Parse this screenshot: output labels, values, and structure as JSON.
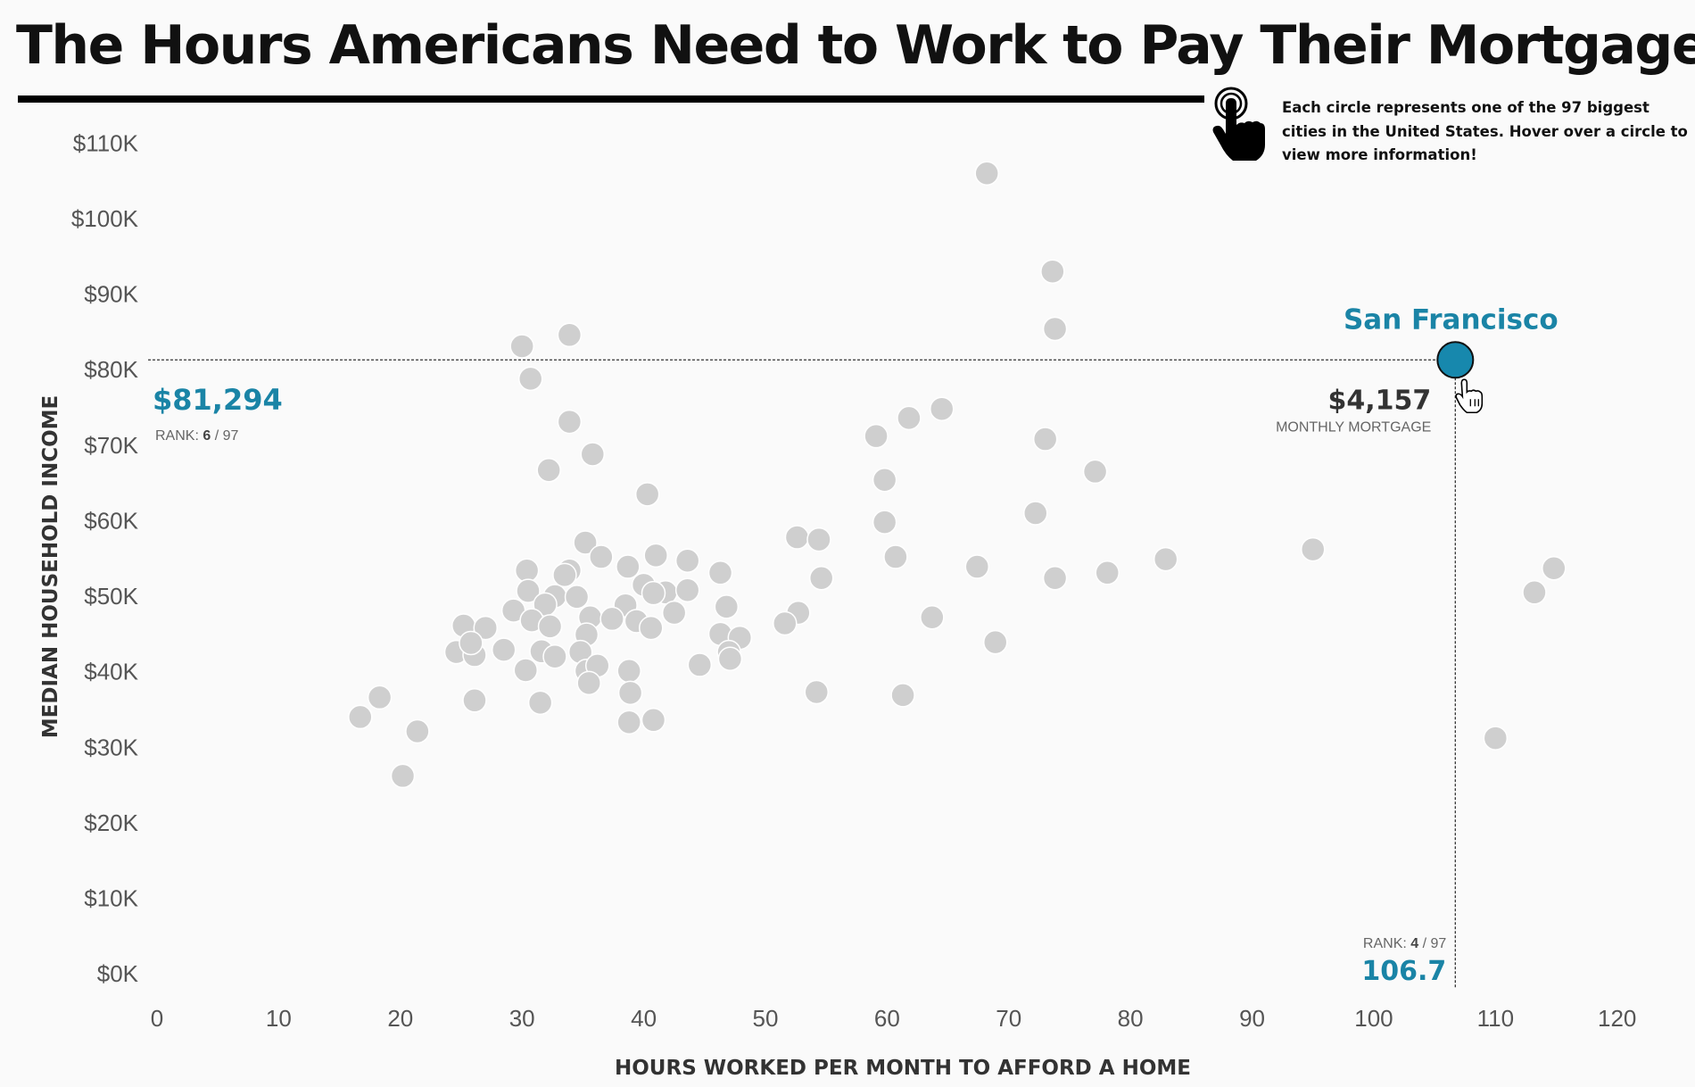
{
  "title": "The Hours Americans Need to Work to Pay Their Mortgage",
  "instructions": "Each circle represents one of the 97 biggest cities in the United States. Hover over a circle to view more information!",
  "icons": {
    "pointer": "pointing-hand-icon",
    "cursor": "hand-cursor-icon"
  },
  "colors": {
    "highlight": "#1a84a6",
    "dots": "#cfcfcf",
    "title_rule": "#000000"
  },
  "chart_data": {
    "type": "scatter",
    "xlabel": "HOURS WORKED PER MONTH TO AFFORD A HOME",
    "ylabel": "MEDIAN HOUSEHOLD INCOME",
    "xlim": [
      0,
      122
    ],
    "ylim": [
      -2000,
      113000
    ],
    "xticks": [
      "0",
      "10",
      "20",
      "30",
      "40",
      "50",
      "60",
      "70",
      "80",
      "90",
      "100",
      "110",
      "120"
    ],
    "yticks": [
      "$0K",
      "$10K",
      "$20K",
      "$30K",
      "$40K",
      "$50K",
      "$60K",
      "$70K",
      "$80K",
      "$90K",
      "$100K",
      "$110K"
    ],
    "grid": false,
    "points": [
      [
        68.2,
        106000
      ],
      [
        73.6,
        93000
      ],
      [
        73.8,
        85400
      ],
      [
        33.9,
        84600
      ],
      [
        30.0,
        83100
      ],
      [
        30.7,
        78800
      ],
      [
        33.9,
        73100
      ],
      [
        35.8,
        68800
      ],
      [
        32.2,
        66700
      ],
      [
        40.3,
        63500
      ],
      [
        59.1,
        71200
      ],
      [
        61.8,
        73600
      ],
      [
        64.5,
        74800
      ],
      [
        73.0,
        70800
      ],
      [
        77.1,
        66500
      ],
      [
        59.8,
        65400
      ],
      [
        59.8,
        59800
      ],
      [
        72.2,
        61000
      ],
      [
        60.7,
        55200
      ],
      [
        52.6,
        57800
      ],
      [
        54.4,
        57500
      ],
      [
        35.2,
        57100
      ],
      [
        36.5,
        55200
      ],
      [
        41.0,
        55400
      ],
      [
        43.6,
        54700
      ],
      [
        38.7,
        53900
      ],
      [
        30.4,
        53400
      ],
      [
        33.9,
        53400
      ],
      [
        33.5,
        52800
      ],
      [
        46.3,
        53100
      ],
      [
        54.6,
        52400
      ],
      [
        67.4,
        53900
      ],
      [
        73.8,
        52400
      ],
      [
        78.1,
        53100
      ],
      [
        82.9,
        54900
      ],
      [
        95.0,
        56200
      ],
      [
        114.8,
        53700
      ],
      [
        113.2,
        50500
      ],
      [
        110.0,
        31200
      ],
      [
        40.0,
        51500
      ],
      [
        41.8,
        50500
      ],
      [
        30.5,
        50700
      ],
      [
        32.7,
        50000
      ],
      [
        34.5,
        49900
      ],
      [
        40.8,
        50400
      ],
      [
        43.6,
        50800
      ],
      [
        31.9,
        48900
      ],
      [
        29.3,
        48100
      ],
      [
        35.6,
        47200
      ],
      [
        38.5,
        48800
      ],
      [
        46.8,
        48600
      ],
      [
        52.7,
        47800
      ],
      [
        63.7,
        47200
      ],
      [
        30.8,
        46800
      ],
      [
        39.4,
        46700
      ],
      [
        40.6,
        45800
      ],
      [
        37.4,
        47000
      ],
      [
        42.5,
        47800
      ],
      [
        25.2,
        46100
      ],
      [
        27.0,
        45800
      ],
      [
        32.3,
        46000
      ],
      [
        35.3,
        44900
      ],
      [
        46.3,
        45000
      ],
      [
        47.9,
        44500
      ],
      [
        51.6,
        46400
      ],
      [
        68.9,
        43900
      ],
      [
        24.6,
        42600
      ],
      [
        26.1,
        42200
      ],
      [
        28.5,
        42900
      ],
      [
        31.6,
        42700
      ],
      [
        32.7,
        42000
      ],
      [
        34.8,
        42600
      ],
      [
        47.0,
        42600
      ],
      [
        25.8,
        43800
      ],
      [
        30.3,
        40200
      ],
      [
        35.3,
        40100
      ],
      [
        36.2,
        40800
      ],
      [
        38.8,
        40100
      ],
      [
        44.6,
        40900
      ],
      [
        47.1,
        41700
      ],
      [
        26.1,
        36200
      ],
      [
        31.5,
        35900
      ],
      [
        35.5,
        38500
      ],
      [
        38.9,
        37200
      ],
      [
        54.2,
        37300
      ],
      [
        61.3,
        36900
      ],
      [
        18.3,
        36600
      ],
      [
        16.7,
        34000
      ],
      [
        21.4,
        32100
      ],
      [
        20.2,
        26200
      ],
      [
        38.8,
        33300
      ],
      [
        40.8,
        33600
      ]
    ],
    "highlight": {
      "name": "San Francisco",
      "x": 106.7,
      "y": 81294,
      "income_label": "$81,294",
      "income_rank_prefix": "RANK: ",
      "income_rank": "6",
      "income_rank_suffix": " / 97",
      "mortgage_label": "$4,157",
      "mortgage_caption": "MONTHLY MORTGAGE",
      "hours_label": "106.7",
      "hours_rank_prefix": "RANK: ",
      "hours_rank": "4",
      "hours_rank_suffix": " / 97"
    }
  }
}
